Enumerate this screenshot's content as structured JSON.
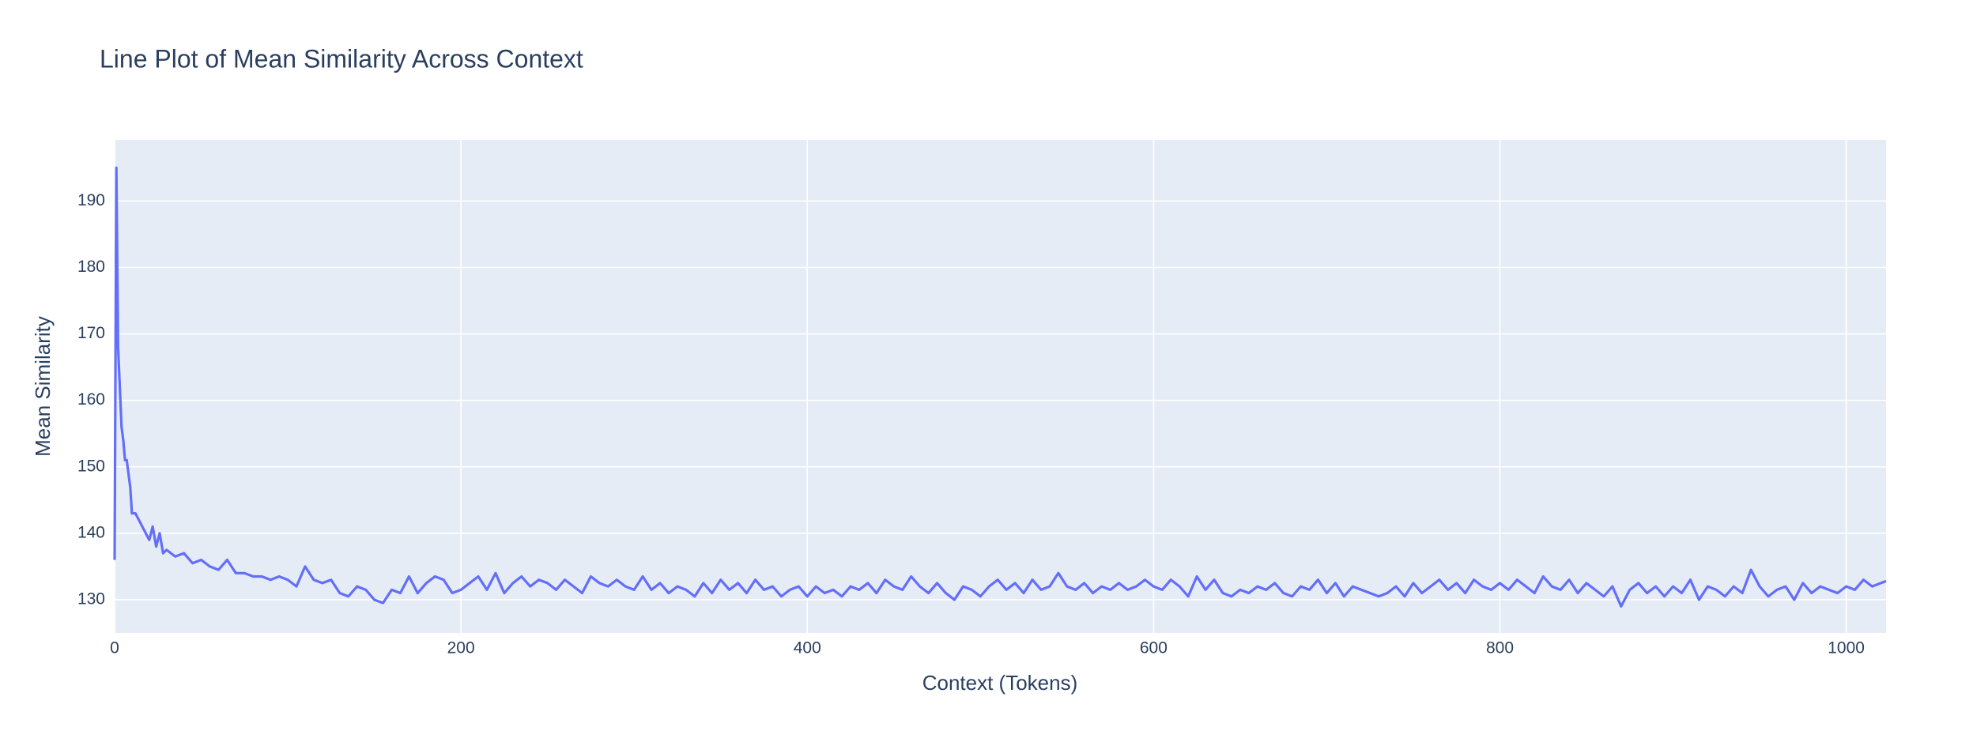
{
  "chart_data": {
    "type": "line",
    "title": "Line Plot of Mean Similarity Across Context",
    "x_label": "Context (Tokens)",
    "y_label": "Mean Similarity",
    "xlim": [
      0,
      1023
    ],
    "ylim": [
      125,
      199.2
    ],
    "xticks": [
      0,
      200,
      400,
      600,
      800,
      1000
    ],
    "yticks": [
      130,
      140,
      150,
      160,
      170,
      180,
      190
    ],
    "grid": true,
    "series": [
      {
        "color": "#636efa",
        "x": [
          0,
          1,
          2,
          3,
          4,
          5,
          6,
          7,
          8,
          9,
          10,
          12,
          14,
          16,
          18,
          20,
          22,
          24,
          26,
          28,
          30,
          35,
          40,
          45,
          50,
          55,
          60,
          65,
          70,
          75,
          80,
          85,
          90,
          95,
          100,
          105,
          110,
          115,
          120,
          125,
          130,
          135,
          140,
          145,
          150,
          155,
          160,
          165,
          170,
          175,
          180,
          185,
          190,
          195,
          200,
          205,
          210,
          215,
          220,
          225,
          230,
          235,
          240,
          245,
          250,
          255,
          260,
          265,
          270,
          275,
          280,
          285,
          290,
          295,
          300,
          305,
          310,
          315,
          320,
          325,
          330,
          335,
          340,
          345,
          350,
          355,
          360,
          365,
          370,
          375,
          380,
          385,
          390,
          395,
          400,
          405,
          410,
          415,
          420,
          425,
          430,
          435,
          440,
          445,
          450,
          455,
          460,
          465,
          470,
          475,
          480,
          485,
          490,
          495,
          500,
          505,
          510,
          515,
          520,
          525,
          530,
          535,
          540,
          545,
          550,
          555,
          560,
          565,
          570,
          575,
          580,
          585,
          590,
          595,
          600,
          605,
          610,
          615,
          620,
          625,
          630,
          635,
          640,
          645,
          650,
          655,
          660,
          665,
          670,
          675,
          680,
          685,
          690,
          695,
          700,
          705,
          710,
          715,
          720,
          725,
          730,
          735,
          740,
          745,
          750,
          755,
          760,
          765,
          770,
          775,
          780,
          785,
          790,
          795,
          800,
          805,
          810,
          815,
          820,
          825,
          830,
          835,
          840,
          845,
          850,
          855,
          860,
          865,
          870,
          875,
          880,
          885,
          890,
          895,
          900,
          905,
          910,
          915,
          920,
          925,
          930,
          935,
          940,
          945,
          950,
          955,
          960,
          965,
          970,
          975,
          980,
          985,
          990,
          995,
          1000,
          1005,
          1010,
          1015,
          1020,
          1023
        ],
        "values": [
          136,
          195,
          168,
          162,
          156,
          154,
          151,
          151,
          149,
          147,
          143,
          143,
          142,
          141,
          140,
          139,
          141,
          138,
          140,
          137,
          137.5,
          136.5,
          137,
          135.5,
          136,
          135,
          134.5,
          136,
          134,
          134,
          133.5,
          133.5,
          133,
          133.5,
          133,
          132,
          135,
          133,
          132.5,
          133,
          131,
          130.5,
          132,
          131.5,
          130,
          129.5,
          131.5,
          131,
          133.5,
          131,
          132.5,
          133.5,
          133,
          131,
          131.5,
          132.5,
          133.5,
          131.5,
          134,
          131,
          132.5,
          133.5,
          132,
          133,
          132.5,
          131.5,
          133,
          132,
          131,
          133.5,
          132.5,
          132,
          133,
          132,
          131.5,
          133.5,
          131.5,
          132.5,
          131,
          132,
          131.5,
          130.5,
          132.5,
          131,
          133,
          131.5,
          132.5,
          131,
          133,
          131.5,
          132,
          130.5,
          131.5,
          132,
          130.5,
          132,
          131,
          131.5,
          130.5,
          132,
          131.5,
          132.5,
          131,
          133,
          132,
          131.5,
          133.5,
          132,
          131,
          132.5,
          131,
          130,
          132,
          131.5,
          130.5,
          132,
          133,
          131.5,
          132.5,
          131,
          133,
          131.5,
          132,
          134,
          132,
          131.5,
          132.5,
          131,
          132,
          131.5,
          132.5,
          131.5,
          132,
          133,
          132,
          131.5,
          133,
          132,
          130.5,
          133.5,
          131.5,
          133,
          131,
          130.5,
          131.5,
          131,
          132,
          131.5,
          132.5,
          131,
          130.5,
          132,
          131.5,
          133,
          131,
          132.5,
          130.5,
          132,
          131.5,
          131,
          130.5,
          131,
          132,
          130.5,
          132.5,
          131,
          132,
          133,
          131.5,
          132.5,
          131,
          133,
          132,
          131.5,
          132.5,
          131.5,
          133,
          132,
          131,
          133.5,
          132,
          131.5,
          133,
          131,
          132.5,
          131.5,
          130.5,
          132,
          129,
          131.5,
          132.5,
          131,
          132,
          130.5,
          132,
          131,
          133,
          130,
          132,
          131.5,
          130.5,
          132,
          131,
          134.5,
          132,
          130.5,
          131.5,
          132,
          130,
          132.5,
          131,
          132,
          131.5,
          131,
          132,
          131.5,
          133,
          132,
          132.5,
          132.8
        ]
      }
    ]
  }
}
